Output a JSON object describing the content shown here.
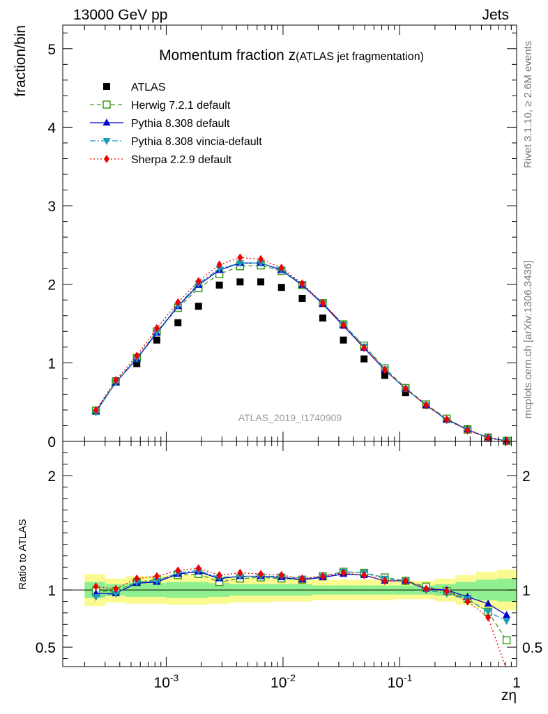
{
  "header": {
    "energy_label": "13000 GeV pp",
    "category_label": "Jets",
    "rivet_label": "Rivet 3.1.10, ≥ 2.6M events",
    "source_label": "mcplots.cern.ch [arXiv:1306.3436]"
  },
  "chart_data": [
    {
      "type": "line",
      "panel": "main",
      "title_main": "Momentum fraction z",
      "title_sub": "(ATLAS jet fragmentation)",
      "ylabel": "fraction/bin",
      "xscale": "log",
      "xlim": [
        0.00013,
        1.0
      ],
      "ylim": [
        0,
        5.3
      ],
      "ytick_values": [
        0,
        1,
        2,
        3,
        4,
        5
      ],
      "ytick_labels": [
        "0",
        "1",
        "2",
        "3",
        "4",
        "5"
      ],
      "analysis_label": "ATLAS_2019_I1740909",
      "legend_position": "top-left",
      "x": [
        0.00025,
        0.00037,
        0.00056,
        0.00083,
        0.00126,
        0.00189,
        0.00285,
        0.00429,
        0.00645,
        0.0097,
        0.0146,
        0.0219,
        0.0329,
        0.0494,
        0.0743,
        0.112,
        0.168,
        0.252,
        0.38,
        0.57,
        0.82
      ],
      "series": [
        {
          "name": "ATLAS",
          "style": "data",
          "color": "#000000",
          "values": [
            0.39,
            0.77,
            0.99,
            1.29,
            1.51,
            1.72,
            1.99,
            2.03,
            2.03,
            1.96,
            1.82,
            1.57,
            1.29,
            1.05,
            0.84,
            0.62,
            0.46,
            0.28,
            0.16,
            0.055,
            0.01
          ]
        },
        {
          "name": "Herwig 7.2.1 default",
          "style": "dashed-open-square",
          "color": "#3a9a1a",
          "values": [
            0.39,
            0.76,
            1.06,
            1.4,
            1.7,
            1.95,
            2.13,
            2.23,
            2.24,
            2.17,
            1.99,
            1.76,
            1.49,
            1.22,
            0.93,
            0.68,
            0.47,
            0.29,
            0.15,
            0.045,
            0.006
          ]
        },
        {
          "name": "Pythia 8.308 default",
          "style": "solid-triangle",
          "color": "#0000cc",
          "values": [
            0.38,
            0.75,
            1.05,
            1.38,
            1.72,
            1.99,
            2.18,
            2.27,
            2.27,
            2.18,
            1.99,
            1.75,
            1.47,
            1.19,
            0.91,
            0.67,
            0.46,
            0.28,
            0.15,
            0.048,
            0.008
          ]
        },
        {
          "name": "Pythia 8.308 vincia-default",
          "style": "dashdot-down-triangle",
          "color": "#1a9abf",
          "values": [
            0.37,
            0.75,
            1.06,
            1.39,
            1.73,
            2.01,
            2.2,
            2.27,
            2.27,
            2.19,
            2.0,
            1.76,
            1.49,
            1.21,
            0.92,
            0.67,
            0.46,
            0.27,
            0.15,
            0.044,
            0.007
          ]
        },
        {
          "name": "Sherpa 2.2.9 default",
          "style": "dotted-diamond",
          "color": "#ee0000",
          "values": [
            0.4,
            0.78,
            1.09,
            1.44,
            1.77,
            2.04,
            2.25,
            2.34,
            2.32,
            2.21,
            2.01,
            1.76,
            1.48,
            1.19,
            0.91,
            0.67,
            0.46,
            0.28,
            0.14,
            0.043,
            0.003
          ]
        }
      ]
    },
    {
      "type": "line",
      "panel": "ratio",
      "ylabel": "Ratio to ATLAS",
      "xlabel": "zη",
      "xscale": "log",
      "xlim": [
        0.00013,
        1.0
      ],
      "ylim": [
        0.33,
        2.3
      ],
      "ytick_values": [
        0.5,
        1,
        2
      ],
      "ytick_labels": [
        "0.5",
        "1",
        "2"
      ],
      "xtick_values": [
        0.001,
        0.01,
        0.1,
        1
      ],
      "xtick_labels": [
        "10^-3",
        "10^-2",
        "10^-1",
        "1"
      ],
      "reference_line": 1,
      "x": [
        0.00025,
        0.00037,
        0.00056,
        0.00083,
        0.00126,
        0.00189,
        0.00285,
        0.00429,
        0.00645,
        0.0097,
        0.0146,
        0.0219,
        0.0329,
        0.0494,
        0.0743,
        0.112,
        0.168,
        0.252,
        0.38,
        0.57,
        0.82
      ],
      "bin_edges": [
        0.0002,
        0.0003,
        0.00045,
        0.00068,
        0.001,
        0.0015,
        0.0023,
        0.0035,
        0.0052,
        0.0078,
        0.0118,
        0.0177,
        0.0266,
        0.04,
        0.06,
        0.09,
        0.135,
        0.2,
        0.3,
        0.45,
        0.68,
        1.0
      ],
      "uncertainty_bands": [
        {
          "name": "stat",
          "color": "#90f090",
          "lower": [
            0.93,
            0.95,
            0.94,
            0.94,
            0.93,
            0.93,
            0.94,
            0.95,
            0.95,
            0.95,
            0.95,
            0.96,
            0.96,
            0.96,
            0.96,
            0.96,
            0.96,
            0.95,
            0.93,
            0.91,
            0.9
          ],
          "upper": [
            1.07,
            1.05,
            1.06,
            1.06,
            1.07,
            1.07,
            1.06,
            1.05,
            1.05,
            1.05,
            1.05,
            1.04,
            1.04,
            1.04,
            1.04,
            1.04,
            1.04,
            1.05,
            1.07,
            1.09,
            1.1
          ]
        },
        {
          "name": "total",
          "color": "#fafa90",
          "lower": [
            0.86,
            0.89,
            0.88,
            0.88,
            0.87,
            0.87,
            0.88,
            0.89,
            0.89,
            0.9,
            0.9,
            0.91,
            0.91,
            0.91,
            0.91,
            0.92,
            0.92,
            0.9,
            0.87,
            0.84,
            0.82
          ],
          "upper": [
            1.14,
            1.1,
            1.12,
            1.12,
            1.13,
            1.13,
            1.12,
            1.11,
            1.11,
            1.1,
            1.1,
            1.09,
            1.09,
            1.09,
            1.09,
            1.08,
            1.08,
            1.1,
            1.13,
            1.16,
            1.18
          ]
        }
      ],
      "series": [
        {
          "name": "Herwig 7.2.1 default",
          "values": [
            0.99,
            0.99,
            1.07,
            1.09,
            1.13,
            1.14,
            1.07,
            1.1,
            1.11,
            1.1,
            1.09,
            1.12,
            1.16,
            1.15,
            1.11,
            1.08,
            1.03,
            0.99,
            0.92,
            0.81,
            0.56
          ]
        },
        {
          "name": "Pythia 8.308 default",
          "values": [
            0.97,
            0.97,
            1.06,
            1.07,
            1.14,
            1.16,
            1.1,
            1.12,
            1.12,
            1.11,
            1.09,
            1.11,
            1.14,
            1.13,
            1.08,
            1.08,
            1.01,
            1.0,
            0.94,
            0.88,
            0.78
          ]
        },
        {
          "name": "Pythia 8.308 vincia-default",
          "values": [
            0.94,
            0.97,
            1.07,
            1.08,
            1.15,
            1.17,
            1.11,
            1.12,
            1.12,
            1.12,
            1.1,
            1.12,
            1.16,
            1.15,
            1.1,
            1.08,
            1.0,
            0.97,
            0.92,
            0.81,
            0.73
          ]
        },
        {
          "name": "Sherpa 2.2.9 default",
          "values": [
            1.03,
            1.01,
            1.1,
            1.12,
            1.17,
            1.19,
            1.13,
            1.15,
            1.14,
            1.13,
            1.1,
            1.12,
            1.15,
            1.13,
            1.08,
            1.08,
            1.01,
            0.99,
            0.9,
            0.76,
            0.3
          ]
        }
      ]
    }
  ]
}
